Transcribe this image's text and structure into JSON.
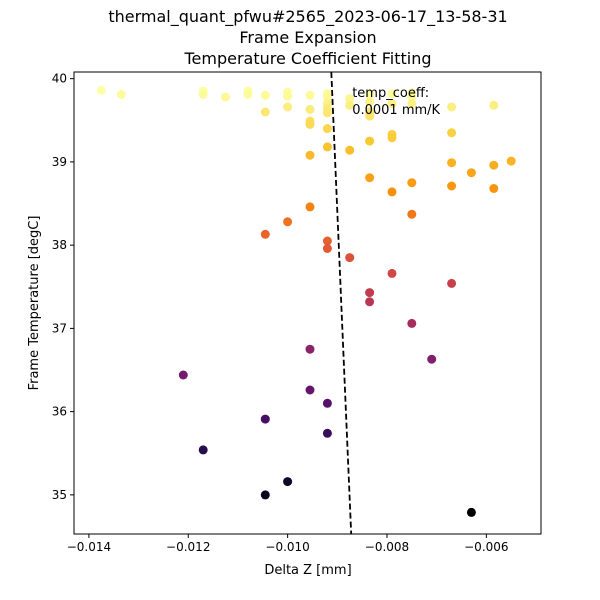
{
  "chart_data": {
    "type": "scatter",
    "title_lines": [
      "thermal_quant_pfwu#2565_2023-06-17_13-58-31",
      "Frame Expansion",
      "Temperature Coefficient Fitting"
    ],
    "xlabel": "Delta Z [mm]",
    "ylabel": "Frame Temperature [degC]",
    "xlim": [
      -0.0143,
      -0.0049
    ],
    "ylim": [
      34.53,
      40.08
    ],
    "xticks": [
      -0.014,
      -0.012,
      -0.01,
      -0.008,
      -0.006
    ],
    "xtick_labels": [
      "−0.014",
      "−0.012",
      "−0.010",
      "−0.008",
      "−0.006"
    ],
    "yticks": [
      35,
      36,
      37,
      38,
      39,
      40
    ],
    "ytick_labels": [
      "35",
      "36",
      "37",
      "38",
      "39",
      "40"
    ],
    "colormap": "inferno",
    "color_by": "y",
    "grid": false,
    "annotation": {
      "lines": [
        "temp_coeff:",
        "0.0001 mm/K"
      ],
      "x": -0.0087,
      "y": 39.78
    },
    "fit_line": {
      "style": "dashed",
      "color": "#000000",
      "points": [
        [
          -0.00912,
          40.08
        ],
        [
          -0.00872,
          34.53
        ]
      ]
    },
    "points": [
      [
        -0.01375,
        39.86
      ],
      [
        -0.01335,
        39.81
      ],
      [
        -0.0117,
        39.85
      ],
      [
        -0.0117,
        39.81
      ],
      [
        -0.01125,
        39.78
      ],
      [
        -0.0108,
        39.85
      ],
      [
        -0.0108,
        39.81
      ],
      [
        -0.01045,
        39.8
      ],
      [
        -0.01,
        39.84
      ],
      [
        -0.01,
        39.79
      ],
      [
        -0.00955,
        39.8
      ],
      [
        -0.0092,
        39.82
      ],
      [
        -0.0092,
        39.78
      ],
      [
        -0.00875,
        39.76
      ],
      [
        -0.00835,
        39.81
      ],
      [
        -0.0079,
        39.82
      ],
      [
        -0.0075,
        39.83
      ],
      [
        -0.0075,
        39.78
      ],
      [
        -0.01,
        39.66
      ],
      [
        -0.0092,
        39.7
      ],
      [
        -0.0092,
        39.64
      ],
      [
        -0.00875,
        39.68
      ],
      [
        -0.00835,
        39.72
      ],
      [
        -0.0079,
        39.7
      ],
      [
        -0.0075,
        39.7
      ],
      [
        -0.0067,
        39.66
      ],
      [
        -0.00585,
        39.68
      ],
      [
        -0.01045,
        39.6
      ],
      [
        -0.00955,
        39.63
      ],
      [
        -0.0092,
        39.59
      ],
      [
        -0.00835,
        39.6
      ],
      [
        -0.00835,
        39.55
      ],
      [
        -0.00955,
        39.49
      ],
      [
        -0.00955,
        39.45
      ],
      [
        -0.0092,
        39.4
      ],
      [
        -0.0079,
        39.33
      ],
      [
        -0.0079,
        39.29
      ],
      [
        -0.0067,
        39.35
      ],
      [
        -0.00835,
        39.25
      ],
      [
        -0.0092,
        39.18
      ],
      [
        -0.00875,
        39.14
      ],
      [
        -0.00955,
        39.08
      ],
      [
        -0.0067,
        38.99
      ],
      [
        -0.00585,
        38.96
      ],
      [
        -0.0055,
        39.01
      ],
      [
        -0.0063,
        38.87
      ],
      [
        -0.00835,
        38.81
      ],
      [
        -0.0075,
        38.75
      ],
      [
        -0.0067,
        38.71
      ],
      [
        -0.00585,
        38.68
      ],
      [
        -0.0079,
        38.64
      ],
      [
        -0.00955,
        38.46
      ],
      [
        -0.0075,
        38.37
      ],
      [
        -0.01,
        38.28
      ],
      [
        -0.01045,
        38.13
      ],
      [
        -0.0092,
        38.05
      ],
      [
        -0.0092,
        37.96
      ],
      [
        -0.00875,
        37.85
      ],
      [
        -0.0079,
        37.66
      ],
      [
        -0.0067,
        37.54
      ],
      [
        -0.00835,
        37.43
      ],
      [
        -0.00835,
        37.32
      ],
      [
        -0.0075,
        37.06
      ],
      [
        -0.00955,
        36.75
      ],
      [
        -0.0071,
        36.63
      ],
      [
        -0.0121,
        36.44
      ],
      [
        -0.00955,
        36.26
      ],
      [
        -0.0092,
        36.1
      ],
      [
        -0.01045,
        35.91
      ],
      [
        -0.0092,
        35.74
      ],
      [
        -0.0117,
        35.54
      ],
      [
        -0.01,
        35.16
      ],
      [
        -0.01045,
        35.0
      ],
      [
        -0.0063,
        34.79
      ]
    ]
  }
}
